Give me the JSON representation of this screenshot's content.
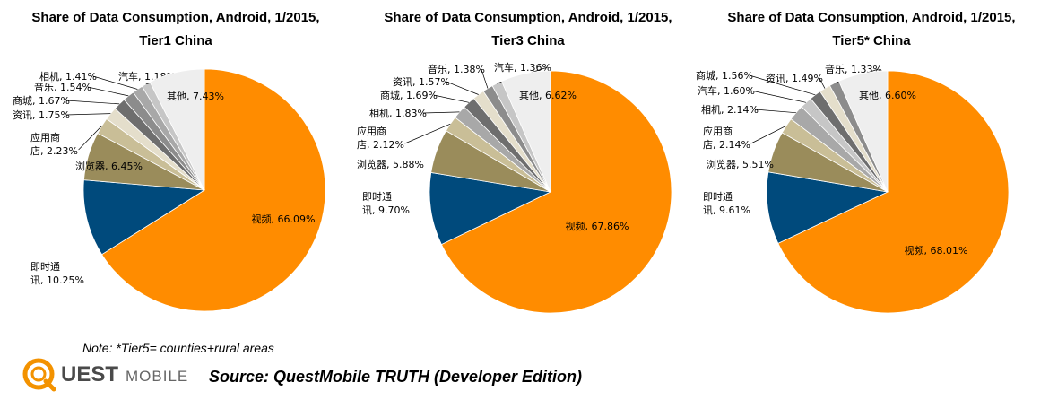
{
  "colors": {
    "视频": "#FF8C00",
    "即时通讯": "#004A7C",
    "浏览器": "#9A8C5B",
    "应用商店": "#C9BE97",
    "资讯": "#E4DECB",
    "商城": "#6E6E6E",
    "音乐": "#8C8C8C",
    "相机": "#A8A8A8",
    "汽车": "#C6C6C6",
    "其他": "#EEEEEE",
    "logo_orange": "#F39200"
  },
  "chart_data": [
    {
      "type": "pie",
      "title_line1": "Share of Data Consumption, Android, 1/2015,",
      "title_line2": "Tier1 China",
      "slices": [
        {
          "name": "视频",
          "value": 66.09,
          "label": [
            "视频, 66.09%"
          ]
        },
        {
          "name": "即时通讯",
          "value": 10.25,
          "label": [
            "即时通",
            "讯, 10.25%"
          ]
        },
        {
          "name": "浏览器",
          "value": 6.45,
          "label": [
            "浏览器, 6.45%"
          ]
        },
        {
          "name": "应用商店",
          "value": 2.23,
          "label": [
            "应用商",
            "店, 2.23%"
          ]
        },
        {
          "name": "资讯",
          "value": 1.75,
          "label": [
            "资讯, 1.75%"
          ]
        },
        {
          "name": "商城",
          "value": 1.67,
          "label": [
            "商城, 1.67%"
          ]
        },
        {
          "name": "音乐",
          "value": 1.54,
          "label": [
            "音乐, 1.54%"
          ]
        },
        {
          "name": "相机",
          "value": 1.41,
          "label": [
            "相机, 1.41%"
          ]
        },
        {
          "name": "汽车",
          "value": 1.18,
          "label": [
            "汽车, 1.18%"
          ]
        },
        {
          "name": "其他",
          "value": 7.43,
          "label": [
            "其他, 7.43%"
          ]
        }
      ]
    },
    {
      "type": "pie",
      "title_line1": "Share of Data Consumption, Android, 1/2015,",
      "title_line2": "Tier3 China",
      "slices": [
        {
          "name": "视频",
          "value": 67.86,
          "label": [
            "视频, 67.86%"
          ]
        },
        {
          "name": "即时通讯",
          "value": 9.7,
          "label": [
            "即时通",
            "讯, 9.70%"
          ]
        },
        {
          "name": "浏览器",
          "value": 5.88,
          "label": [
            "浏览器, 5.88%"
          ]
        },
        {
          "name": "应用商店",
          "value": 2.12,
          "label": [
            "应用商",
            "店, 2.12%"
          ]
        },
        {
          "name": "相机",
          "value": 1.83,
          "label": [
            "相机, 1.83%"
          ]
        },
        {
          "name": "商城",
          "value": 1.69,
          "label": [
            "商城, 1.69%"
          ]
        },
        {
          "name": "资讯",
          "value": 1.57,
          "label": [
            "资讯, 1.57%"
          ]
        },
        {
          "name": "音乐",
          "value": 1.38,
          "label": [
            "音乐, 1.38%"
          ]
        },
        {
          "name": "汽车",
          "value": 1.36,
          "label": [
            "汽车, 1.36%"
          ]
        },
        {
          "name": "其他",
          "value": 6.62,
          "label": [
            "其他, 6.62%"
          ]
        }
      ]
    },
    {
      "type": "pie",
      "title_line1": "Share of Data Consumption, Android, 1/2015,",
      "title_line2": "Tier5* China",
      "slices": [
        {
          "name": "视频",
          "value": 68.01,
          "label": [
            "视频, 68.01%"
          ]
        },
        {
          "name": "即时通讯",
          "value": 9.61,
          "label": [
            "即时通",
            "讯, 9.61%"
          ]
        },
        {
          "name": "浏览器",
          "value": 5.51,
          "label": [
            "浏览器, 5.51%"
          ]
        },
        {
          "name": "应用商店",
          "value": 2.14,
          "label": [
            "应用商",
            "店, 2.14%"
          ]
        },
        {
          "name": "相机",
          "value": 2.14,
          "label": [
            "相机, 2.14%"
          ]
        },
        {
          "name": "汽车",
          "value": 1.6,
          "label": [
            "汽车, 1.60%"
          ]
        },
        {
          "name": "商城",
          "value": 1.56,
          "label": [
            "商城, 1.56%"
          ]
        },
        {
          "name": "资讯",
          "value": 1.49,
          "label": [
            "资讯, 1.49%"
          ]
        },
        {
          "name": "音乐",
          "value": 1.33,
          "label": [
            "音乐, 1.33%"
          ]
        },
        {
          "name": "其他",
          "value": 6.6,
          "label": [
            "其他, 6.60%"
          ]
        }
      ]
    }
  ],
  "footer": {
    "note": "Note: *Tier5= counties+rural areas",
    "source": "Source: QuestMobile TRUTH (Developer Edition)",
    "logo_word": "UEST",
    "logo_sub": "MOBILE"
  }
}
